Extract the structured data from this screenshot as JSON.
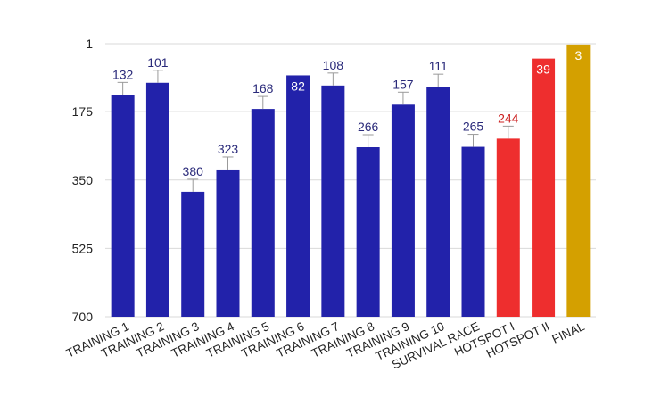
{
  "chart_data": {
    "type": "bar",
    "title": "",
    "xlabel": "",
    "ylabel": "",
    "y_axis_reversed": true,
    "ylim": [
      1,
      700
    ],
    "yticks": [
      1,
      175,
      350,
      525,
      700
    ],
    "grid": true,
    "legend": "none",
    "categories": [
      "TRAINING 1",
      "TRAINING 2",
      "TRAINING 3",
      "TRAINING 4",
      "TRAINING 5",
      "TRAINING 6",
      "TRAINING 7",
      "TRAINING 8",
      "TRAINING 9",
      "TRAINING 10",
      "SURVIVAL RACE",
      "HOTSPOT I",
      "HOTSPOT II",
      "FINAL"
    ],
    "values": [
      132,
      101,
      380,
      323,
      168,
      82,
      108,
      266,
      157,
      111,
      265,
      244,
      39,
      3
    ],
    "colors": [
      "#2222aa",
      "#2222aa",
      "#2222aa",
      "#2222aa",
      "#2222aa",
      "#2222aa",
      "#2222aa",
      "#2222aa",
      "#2222aa",
      "#2222aa",
      "#2222aa",
      "#ee2e2e",
      "#ee2e2e",
      "#d4a000"
    ],
    "label_colors": [
      "#2a2a7a",
      "#2a2a7a",
      "#2a2a7a",
      "#2a2a7a",
      "#2a2a7a",
      "#ffffff",
      "#2a2a7a",
      "#2a2a7a",
      "#2a2a7a",
      "#2a2a7a",
      "#2a2a7a",
      "#cc2222",
      "#ffffff",
      "#ffffff"
    ],
    "label_inside": [
      false,
      false,
      false,
      false,
      false,
      true,
      false,
      false,
      false,
      false,
      false,
      false,
      true,
      true
    ]
  }
}
